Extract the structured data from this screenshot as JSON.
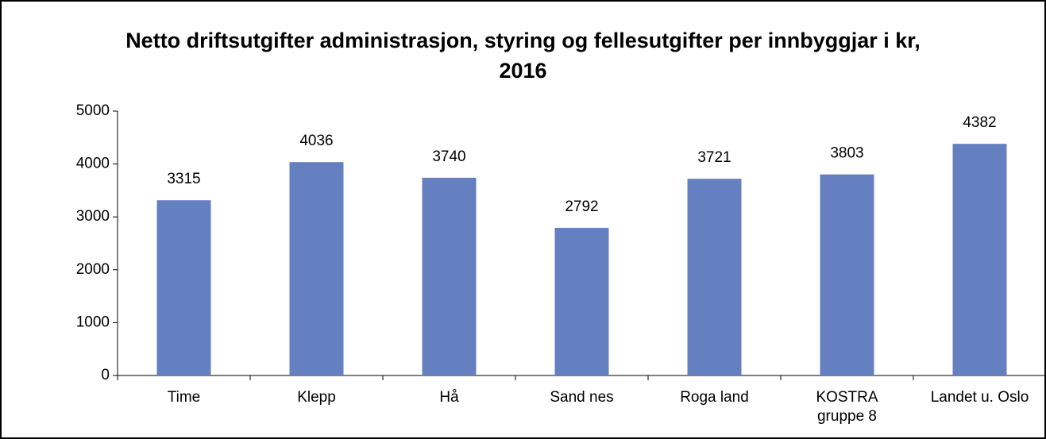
{
  "chart_data": {
    "type": "bar",
    "title": "Netto driftsutgifter administrasjon, styring og fellesutgifter per innbyggjar i kr, 2016",
    "categories": [
      "Time",
      "Klepp",
      "Hå",
      "Sand nes",
      "Roga land",
      "KOSTRA\ngruppe 8",
      "Landet u. Oslo"
    ],
    "values": [
      3315,
      4036,
      3740,
      2792,
      3721,
      3803,
      4382
    ],
    "color": "#6580c0",
    "ylim": [
      0,
      5000
    ],
    "yticks": [
      0,
      1000,
      2000,
      3000,
      4000,
      5000
    ],
    "grid": false
  }
}
